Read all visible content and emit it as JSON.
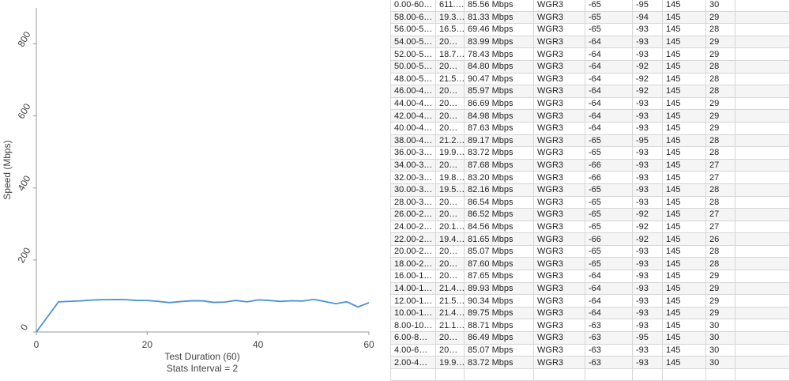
{
  "chart_data": {
    "type": "line",
    "x_label": "Test Duration (60)",
    "x_label_2": "Stats Interval = 2",
    "y_label": "Speed (Mbps)",
    "x": [
      0,
      4,
      6,
      8,
      10,
      12,
      14,
      16,
      18,
      20,
      22,
      24,
      26,
      28,
      30,
      32,
      34,
      36,
      38,
      40,
      42,
      44,
      46,
      48,
      50,
      52,
      54,
      56,
      58,
      60
    ],
    "values": [
      0,
      83.72,
      85.07,
      86.49,
      88.71,
      89.75,
      90.34,
      89.93,
      87.65,
      87.6,
      85.07,
      81.65,
      84.56,
      86.52,
      86.54,
      82.16,
      83.2,
      87.68,
      83.72,
      89.17,
      87.63,
      84.98,
      86.69,
      85.97,
      90.47,
      84.8,
      78.43,
      83.99,
      69.46,
      81.33
    ],
    "color": "#4a90d9",
    "xlim": [
      0,
      60
    ],
    "xticks": [
      0,
      20,
      40,
      60
    ],
    "ylim": [
      0,
      900
    ],
    "yticks": [
      0,
      200,
      400,
      600,
      800
    ]
  },
  "table": {
    "rows": [
      [
        "0.00-60…",
        "611.…",
        "85.56 Mbps",
        "WGR3",
        "-65",
        "-95",
        "145",
        "30"
      ],
      [
        "58.00-6…",
        "19.3…",
        "81.33 Mbps",
        "WGR3",
        "-65",
        "-94",
        "145",
        "29"
      ],
      [
        "56.00-5…",
        "16.5…",
        "69.46 Mbps",
        "WGR3",
        "-65",
        "-93",
        "145",
        "28"
      ],
      [
        "54.00-5…",
        "20…",
        "83.99 Mbps",
        "WGR3",
        "-64",
        "-93",
        "145",
        "29"
      ],
      [
        "52.00-5…",
        "18.7…",
        "78.43 Mbps",
        "WGR3",
        "-64",
        "-93",
        "145",
        "29"
      ],
      [
        "50.00-5…",
        "20…",
        "84.80 Mbps",
        "WGR3",
        "-64",
        "-92",
        "145",
        "28"
      ],
      [
        "48.00-5…",
        "21.5…",
        "90.47 Mbps",
        "WGR3",
        "-64",
        "-92",
        "145",
        "28"
      ],
      [
        "46.00-4…",
        "20…",
        "85.97 Mbps",
        "WGR3",
        "-64",
        "-92",
        "145",
        "28"
      ],
      [
        "44.00-4…",
        "20…",
        "86.69 Mbps",
        "WGR3",
        "-64",
        "-93",
        "145",
        "29"
      ],
      [
        "42.00-4…",
        "20…",
        "84.98 Mbps",
        "WGR3",
        "-64",
        "-93",
        "145",
        "29"
      ],
      [
        "40.00-4…",
        "20…",
        "87.63 Mbps",
        "WGR3",
        "-64",
        "-93",
        "145",
        "29"
      ],
      [
        "38.00-4…",
        "21.2…",
        "89.17 Mbps",
        "WGR3",
        "-65",
        "-95",
        "145",
        "28"
      ],
      [
        "36.00-3…",
        "19.9…",
        "83.72 Mbps",
        "WGR3",
        "-65",
        "-93",
        "145",
        "28"
      ],
      [
        "34.00-3…",
        "20…",
        "87.68 Mbps",
        "WGR3",
        "-66",
        "-93",
        "145",
        "27"
      ],
      [
        "32.00-3…",
        "19.8…",
        "83.20 Mbps",
        "WGR3",
        "-66",
        "-93",
        "145",
        "27"
      ],
      [
        "30.00-3…",
        "19.5…",
        "82.16 Mbps",
        "WGR3",
        "-65",
        "-93",
        "145",
        "28"
      ],
      [
        "28.00-3…",
        "20…",
        "86.54 Mbps",
        "WGR3",
        "-65",
        "-93",
        "145",
        "28"
      ],
      [
        "26.00-2…",
        "20…",
        "86.52 Mbps",
        "WGR3",
        "-65",
        "-92",
        "145",
        "27"
      ],
      [
        "24.00-2…",
        "20.1…",
        "84.56 Mbps",
        "WGR3",
        "-65",
        "-92",
        "145",
        "27"
      ],
      [
        "22.00-2…",
        "19.4…",
        "81.65 Mbps",
        "WGR3",
        "-66",
        "-92",
        "145",
        "26"
      ],
      [
        "20.00-2…",
        "20…",
        "85.07 Mbps",
        "WGR3",
        "-65",
        "-93",
        "145",
        "28"
      ],
      [
        "18.00-2…",
        "20…",
        "87.60 Mbps",
        "WGR3",
        "-65",
        "-93",
        "145",
        "28"
      ],
      [
        "16.00-1…",
        "20…",
        "87.65 Mbps",
        "WGR3",
        "-64",
        "-93",
        "145",
        "29"
      ],
      [
        "14.00-1…",
        "21.4…",
        "89.93 Mbps",
        "WGR3",
        "-64",
        "-93",
        "145",
        "29"
      ],
      [
        "12.00-1…",
        "21.5…",
        "90.34 Mbps",
        "WGR3",
        "-64",
        "-93",
        "145",
        "29"
      ],
      [
        "10.00-1…",
        "21.4…",
        "89.75 Mbps",
        "WGR3",
        "-64",
        "-93",
        "145",
        "29"
      ],
      [
        "8.00-10…",
        "21.1…",
        "88.71 Mbps",
        "WGR3",
        "-63",
        "-93",
        "145",
        "30"
      ],
      [
        "6.00-8…",
        "20…",
        "86.49 Mbps",
        "WGR3",
        "-63",
        "-95",
        "145",
        "30"
      ],
      [
        "4.00-6…",
        "20…",
        "85.07 Mbps",
        "WGR3",
        "-63",
        "-93",
        "145",
        "30"
      ],
      [
        "2.00-4…",
        "19.9…",
        "83.72 Mbps",
        "WGR3",
        "-63",
        "-93",
        "145",
        "30"
      ]
    ]
  }
}
